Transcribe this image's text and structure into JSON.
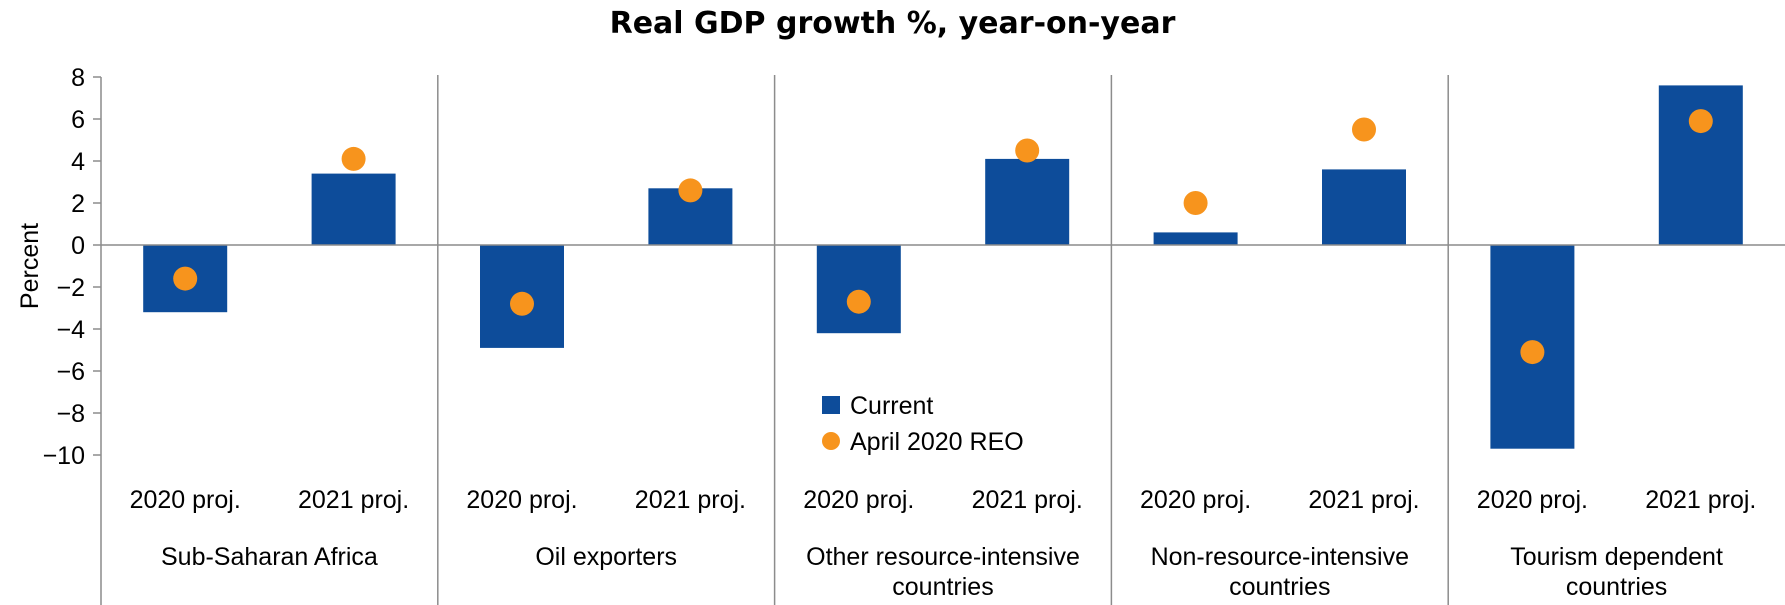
{
  "chart_data": {
    "type": "bar",
    "title": "Real GDP growth %, year-on-year",
    "ylabel": "Percent",
    "ylim": [
      -10,
      8
    ],
    "yticks": [
      8,
      6,
      4,
      2,
      0,
      -2,
      -4,
      -6,
      -8,
      -10
    ],
    "ytick_labels": [
      "8",
      "6",
      "4",
      "2",
      "0",
      "−2",
      "−4",
      "−6",
      "−8",
      "−10"
    ],
    "groups": [
      {
        "label": "Sub-Saharan Africa",
        "categories": [
          "2020 proj.",
          "2021 proj."
        ],
        "current": [
          -3.2,
          3.4
        ],
        "april": [
          -1.6,
          4.1
        ]
      },
      {
        "label": "Oil exporters",
        "categories": [
          "2020 proj.",
          "2021 proj."
        ],
        "current": [
          -4.9,
          2.7
        ],
        "april": [
          -2.8,
          2.6
        ]
      },
      {
        "label": "Other resource-intensive countries",
        "categories": [
          "2020 proj.",
          "2021 proj."
        ],
        "current": [
          -4.2,
          4.1
        ],
        "april": [
          -2.7,
          4.5
        ]
      },
      {
        "label": "Non-resource-intensive countries",
        "categories": [
          "2020 proj.",
          "2021 proj."
        ],
        "current": [
          0.6,
          3.6
        ],
        "april": [
          2.0,
          5.5
        ]
      },
      {
        "label": "Tourism dependent countries",
        "categories": [
          "2020 proj.",
          "2021 proj."
        ],
        "current": [
          -9.7,
          7.6
        ],
        "april": [
          -5.1,
          5.9
        ]
      }
    ],
    "series": [
      {
        "name": "Current",
        "color": "#0D4C9A",
        "marker": "bar"
      },
      {
        "name": "April 2020 REO",
        "color": "#F7941D",
        "marker": "dot"
      }
    ],
    "legend_position": "center"
  }
}
